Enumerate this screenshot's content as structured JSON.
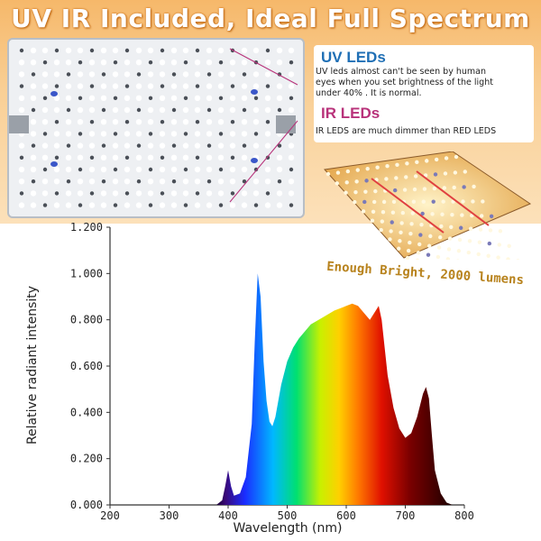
{
  "banner": {
    "title": "UV IR Included, Ideal Full Spectrum"
  },
  "callout": {
    "uv_title": "UV LEDs",
    "uv_text_lines": [
      "UV leds almost can't be seen by human",
      "eyes when you set brightness of the light",
      "under 40% . It is normal."
    ],
    "ir_title": "IR LEDs",
    "ir_text": "IR LEDS are much dimmer than RED LEDS",
    "colors": {
      "uv_title": "#1f6fb5",
      "ir_title": "#b8327a"
    }
  },
  "photo": {
    "caption": "Enough Bright, 2000 lumens"
  },
  "chart_data": {
    "type": "area",
    "title": "",
    "xlabel": "Wavelength (nm)",
    "ylabel": "Relative radiant intensity",
    "xlim": [
      200,
      800
    ],
    "ylim": [
      0,
      1.2
    ],
    "x_ticks": [
      "200",
      "300",
      "400",
      "500",
      "600",
      "700",
      "800"
    ],
    "y_ticks": [
      "0.000",
      "0.200",
      "0.400",
      "0.600",
      "0.800",
      "1.000",
      "1.200"
    ],
    "grid": false,
    "legend": "none",
    "fill": "visible spectrum color gradient",
    "x": [
      380,
      390,
      395,
      400,
      405,
      410,
      420,
      430,
      440,
      445,
      450,
      455,
      460,
      465,
      470,
      475,
      480,
      490,
      500,
      510,
      520,
      540,
      560,
      580,
      600,
      610,
      620,
      630,
      640,
      650,
      655,
      660,
      665,
      670,
      680,
      690,
      700,
      710,
      720,
      730,
      735,
      740,
      745,
      750,
      760,
      770,
      780
    ],
    "y": [
      0.0,
      0.02,
      0.08,
      0.15,
      0.08,
      0.04,
      0.05,
      0.12,
      0.35,
      0.7,
      1.0,
      0.9,
      0.62,
      0.45,
      0.36,
      0.34,
      0.38,
      0.52,
      0.62,
      0.68,
      0.72,
      0.78,
      0.81,
      0.84,
      0.86,
      0.87,
      0.86,
      0.83,
      0.8,
      0.84,
      0.86,
      0.8,
      0.68,
      0.56,
      0.42,
      0.33,
      0.29,
      0.31,
      0.38,
      0.48,
      0.51,
      0.46,
      0.3,
      0.15,
      0.05,
      0.01,
      0.0
    ]
  }
}
